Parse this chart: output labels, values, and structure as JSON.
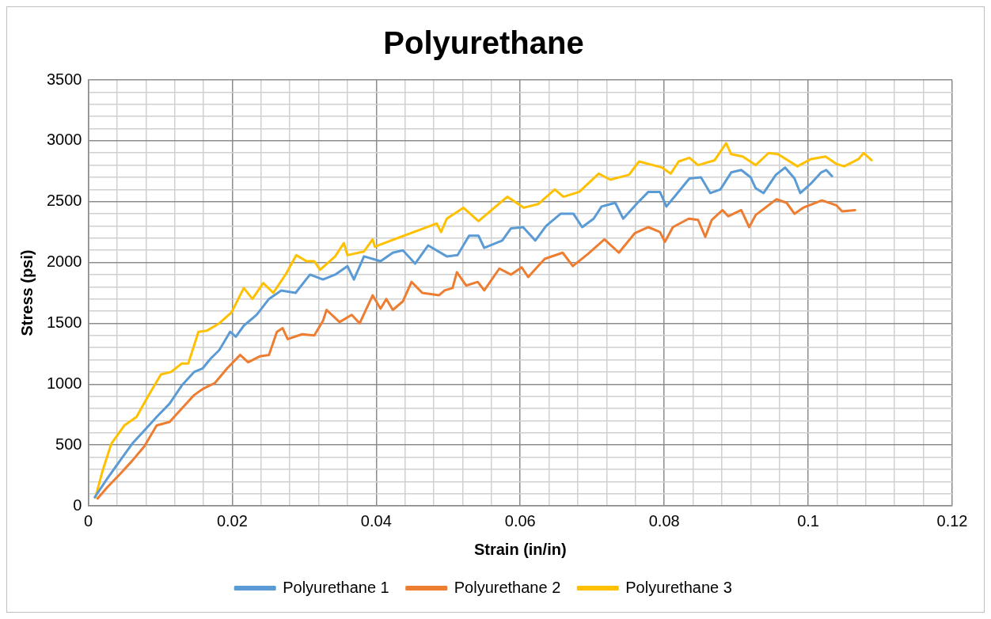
{
  "chart_data": {
    "type": "line",
    "title": "Polyurethane",
    "xlabel": "Strain (in/in)",
    "ylabel": "Stress (psi)",
    "xlim": [
      0,
      0.12
    ],
    "ylim": [
      0,
      3500
    ],
    "xticks": [
      0,
      {
        "value": 0.004,
        "label": null
      },
      {
        "value": 0.008,
        "label": null
      },
      {
        "value": 0.012,
        "label": null
      },
      {
        "value": 0.016,
        "label": null
      },
      0.02,
      {
        "value": 0.024,
        "label": null
      },
      {
        "value": 0.028,
        "label": null
      },
      {
        "value": 0.032,
        "label": null
      },
      {
        "value": 0.036,
        "label": null
      },
      0.04,
      {
        "value": 0.044,
        "label": null
      },
      {
        "value": 0.048,
        "label": null
      },
      {
        "value": 0.052,
        "label": null
      },
      {
        "value": 0.056,
        "label": null
      },
      0.06,
      {
        "value": 0.064,
        "label": null
      },
      {
        "value": 0.068,
        "label": null
      },
      {
        "value": 0.072,
        "label": null
      },
      {
        "value": 0.076,
        "label": null
      },
      0.08,
      {
        "value": 0.084,
        "label": null
      },
      {
        "value": 0.088,
        "label": null
      },
      {
        "value": 0.092,
        "label": null
      },
      {
        "value": 0.096,
        "label": null
      },
      0.1,
      {
        "value": 0.104,
        "label": null
      },
      {
        "value": 0.108,
        "label": null
      },
      {
        "value": 0.112,
        "label": null
      },
      {
        "value": 0.116,
        "label": null
      },
      0.12
    ],
    "yticks": [
      0,
      {
        "value": 100,
        "label": null
      },
      {
        "value": 200,
        "label": null
      },
      {
        "value": 300,
        "label": null
      },
      {
        "value": 400,
        "label": null
      },
      500,
      {
        "value": 600,
        "label": null
      },
      {
        "value": 700,
        "label": null
      },
      {
        "value": 800,
        "label": null
      },
      {
        "value": 900,
        "label": null
      },
      1000,
      {
        "value": 1100,
        "label": null
      },
      {
        "value": 1200,
        "label": null
      },
      {
        "value": 1300,
        "label": null
      },
      {
        "value": 1400,
        "label": null
      },
      1500,
      {
        "value": 1600,
        "label": null
      },
      {
        "value": 1700,
        "label": null
      },
      {
        "value": 1800,
        "label": null
      },
      {
        "value": 1900,
        "label": null
      },
      2000,
      {
        "value": 2100,
        "label": null
      },
      {
        "value": 2200,
        "label": null
      },
      {
        "value": 2300,
        "label": null
      },
      {
        "value": 2400,
        "label": null
      },
      2500,
      {
        "value": 2600,
        "label": null
      },
      {
        "value": 2700,
        "label": null
      },
      {
        "value": 2800,
        "label": null
      },
      {
        "value": 2900,
        "label": null
      },
      3000,
      {
        "value": 3100,
        "label": null
      },
      {
        "value": 3200,
        "label": null
      },
      {
        "value": 3300,
        "label": null
      },
      {
        "value": 3400,
        "label": null
      },
      3500
    ],
    "grid": true,
    "legend": "bottom",
    "marker": "none",
    "line_style": "solid",
    "series": [
      {
        "name": "Polyurethane 1",
        "color": "#5b9bd5",
        "x": [
          0.0009,
          0.0026,
          0.0044,
          0.0061,
          0.0078,
          0.0095,
          0.0113,
          0.013,
          0.0147,
          0.0159,
          0.017,
          0.0182,
          0.0197,
          0.0205,
          0.0216,
          0.0234,
          0.0251,
          0.0268,
          0.0288,
          0.0308,
          0.0326,
          0.0343,
          0.036,
          0.0369,
          0.0383,
          0.0406,
          0.0423,
          0.0437,
          0.0454,
          0.0472,
          0.0498,
          0.0513,
          0.0529,
          0.0542,
          0.055,
          0.0575,
          0.0587,
          0.0604,
          0.0621,
          0.0636,
          0.0656,
          0.0674,
          0.0686,
          0.0702,
          0.0713,
          0.0732,
          0.0743,
          0.0763,
          0.0778,
          0.0794,
          0.0803,
          0.0817,
          0.0835,
          0.0851,
          0.0864,
          0.0878,
          0.0893,
          0.0907,
          0.092,
          0.0927,
          0.0938,
          0.0955,
          0.0968,
          0.0981,
          0.0989,
          0.1004,
          0.1018,
          0.1025,
          0.1033
        ],
        "values": [
          70,
          220,
          370,
          510,
          620,
          730,
          840,
          990,
          1100,
          1130,
          1210,
          1280,
          1430,
          1390,
          1480,
          1570,
          1700,
          1770,
          1750,
          1900,
          1860,
          1900,
          1970,
          1860,
          2050,
          2010,
          2080,
          2100,
          1990,
          2140,
          2050,
          2060,
          2220,
          2220,
          2120,
          2180,
          2280,
          2290,
          2180,
          2300,
          2400,
          2400,
          2290,
          2360,
          2460,
          2490,
          2360,
          2490,
          2580,
          2580,
          2460,
          2560,
          2690,
          2700,
          2570,
          2600,
          2740,
          2760,
          2700,
          2610,
          2570,
          2720,
          2780,
          2690,
          2570,
          2650,
          2740,
          2760,
          2710
        ]
      },
      {
        "name": "Polyurethane 2",
        "color": "#ed7d31",
        "x": [
          0.0013,
          0.0026,
          0.0044,
          0.0061,
          0.0078,
          0.0095,
          0.0113,
          0.013,
          0.0147,
          0.0159,
          0.0176,
          0.0193,
          0.0211,
          0.0222,
          0.0239,
          0.0251,
          0.0262,
          0.027,
          0.0277,
          0.0297,
          0.0314,
          0.0326,
          0.0331,
          0.0349,
          0.0366,
          0.0377,
          0.0395,
          0.0406,
          0.0414,
          0.0423,
          0.0437,
          0.0449,
          0.0464,
          0.0487,
          0.0495,
          0.0506,
          0.0512,
          0.0525,
          0.0541,
          0.055,
          0.0571,
          0.0587,
          0.0602,
          0.0611,
          0.0634,
          0.0659,
          0.0673,
          0.0694,
          0.0717,
          0.0737,
          0.0759,
          0.0778,
          0.0794,
          0.0801,
          0.0812,
          0.0834,
          0.0847,
          0.0857,
          0.0866,
          0.0881,
          0.0889,
          0.0907,
          0.0918,
          0.0927,
          0.0956,
          0.097,
          0.0981,
          0.0993,
          0.1019,
          0.1039,
          0.1047,
          0.1065
        ],
        "values": [
          60,
          150,
          260,
          370,
          490,
          660,
          690,
          800,
          910,
          960,
          1010,
          1130,
          1240,
          1180,
          1230,
          1240,
          1430,
          1460,
          1370,
          1410,
          1400,
          1520,
          1610,
          1510,
          1570,
          1500,
          1730,
          1620,
          1700,
          1610,
          1680,
          1840,
          1750,
          1730,
          1770,
          1790,
          1920,
          1810,
          1840,
          1770,
          1950,
          1900,
          1960,
          1880,
          2030,
          2080,
          1970,
          2070,
          2190,
          2080,
          2240,
          2290,
          2250,
          2170,
          2290,
          2360,
          2350,
          2210,
          2350,
          2430,
          2380,
          2430,
          2290,
          2390,
          2520,
          2490,
          2400,
          2450,
          2510,
          2470,
          2420,
          2430
        ]
      },
      {
        "name": "Polyurethane 3",
        "color": "#ffc000",
        "x": [
          0.001,
          0.002,
          0.0032,
          0.005,
          0.0067,
          0.0082,
          0.0101,
          0.0115,
          0.013,
          0.0139,
          0.0153,
          0.0165,
          0.0182,
          0.0199,
          0.0216,
          0.0228,
          0.0243,
          0.0257,
          0.0274,
          0.0289,
          0.0303,
          0.0314,
          0.0322,
          0.0343,
          0.0355,
          0.036,
          0.0383,
          0.0395,
          0.0398,
          0.0484,
          0.049,
          0.0498,
          0.0521,
          0.0542,
          0.0582,
          0.0605,
          0.0625,
          0.0648,
          0.066,
          0.0682,
          0.0709,
          0.0725,
          0.0751,
          0.0765,
          0.0797,
          0.0809,
          0.082,
          0.0835,
          0.0847,
          0.087,
          0.0886,
          0.0893,
          0.0909,
          0.0927,
          0.0945,
          0.0958,
          0.0985,
          0.1004,
          0.1024,
          0.1039,
          0.105,
          0.107,
          0.1077,
          0.1088
        ],
        "values": [
          70,
          290,
          510,
          660,
          730,
          890,
          1080,
          1100,
          1170,
          1170,
          1430,
          1440,
          1500,
          1590,
          1790,
          1700,
          1830,
          1750,
          1900,
          2060,
          2010,
          2010,
          1940,
          2050,
          2160,
          2060,
          2090,
          2190,
          2130,
          2320,
          2250,
          2360,
          2450,
          2340,
          2540,
          2450,
          2480,
          2600,
          2540,
          2580,
          2730,
          2680,
          2720,
          2830,
          2780,
          2730,
          2830,
          2860,
          2800,
          2840,
          2980,
          2890,
          2870,
          2800,
          2900,
          2890,
          2790,
          2850,
          2870,
          2810,
          2790,
          2850,
          2900,
          2840
        ]
      }
    ]
  }
}
